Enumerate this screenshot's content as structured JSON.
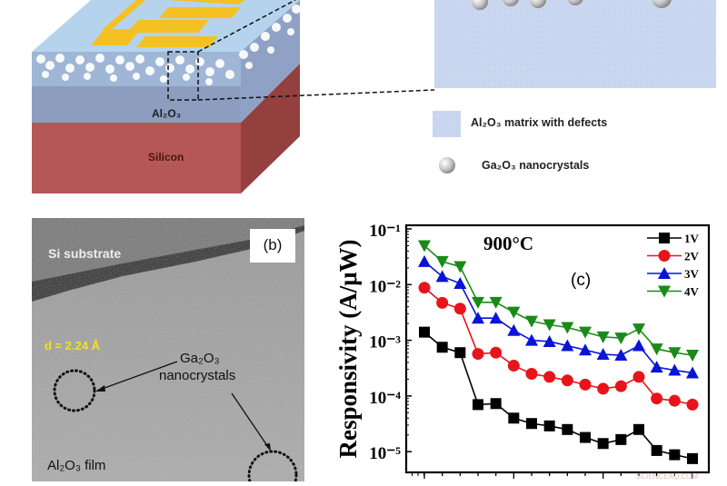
{
  "figure": {
    "panel_a": {
      "layer_labels": {
        "oxide": "Al₂O₃",
        "substrate": "Silicon"
      },
      "legend": [
        {
          "icon": "matrix-swatch",
          "label": "Al₂O₃ matrix with defects"
        },
        {
          "icon": "nanocrystal-sphere",
          "label": "Ga₂O₃ nanocrystals"
        }
      ],
      "colors": {
        "oxide_top": "#a9cbe6",
        "oxide_side": "#8a9cc0",
        "silicon_front": "#b55756",
        "silicon_side": "#94403f",
        "electrode": "#f5c022",
        "zoom_panel": "#c9d8f0"
      }
    },
    "panel_b": {
      "panel_label": "(b)",
      "substrate_label": "Si substrate",
      "d_spacing": "d = 2.24 Å",
      "nanocrystal_label_line1": "Ga₂O₃",
      "nanocrystal_label_line2": "nanocrystals",
      "film_label": "Al₂O₃ film"
    },
    "panel_c": {
      "panel_label": "(c)",
      "watermark": "SCIENCEAQ.COM"
    }
  },
  "chart_data": {
    "type": "line",
    "title": "900°C",
    "panel": "(c)",
    "xlabel": "",
    "ylabel": "Responsivity (A/μW)",
    "yscale": "log",
    "ylim": [
      5e-06,
      0.1
    ],
    "yticks": [
      "10⁻¹",
      "10⁻²",
      "10⁻³",
      "10⁻⁴",
      "10⁻⁵"
    ],
    "x": [
      1,
      2,
      3,
      4,
      5,
      6,
      7,
      8,
      9,
      10,
      11,
      12,
      13,
      14,
      15,
      16
    ],
    "grid": false,
    "legend_position": "upper right",
    "series": [
      {
        "name": "1V",
        "color": "#000000",
        "marker": "square",
        "values": [
          0.0014,
          0.00075,
          0.0006,
          7e-05,
          7.3e-05,
          4e-05,
          3.2e-05,
          2.9e-05,
          2.5e-05,
          1.8e-05,
          1.4e-05,
          1.65e-05,
          2.5e-05,
          1.05e-05,
          8.8e-06,
          7.5e-06
        ]
      },
      {
        "name": "2V",
        "color": "#e8141b",
        "marker": "circle",
        "values": [
          0.0088,
          0.0047,
          0.0037,
          0.00057,
          0.0006,
          0.00035,
          0.00025,
          0.00022,
          0.00019,
          0.00016,
          0.000135,
          0.00015,
          0.00022,
          9e-05,
          8.2e-05,
          7e-05
        ]
      },
      {
        "name": "3V",
        "color": "#0a14d8",
        "marker": "triangle-up",
        "values": [
          0.026,
          0.014,
          0.0105,
          0.0025,
          0.0025,
          0.0015,
          0.001,
          0.00095,
          0.0008,
          0.00067,
          0.00056,
          0.00054,
          0.0008,
          0.00033,
          0.00029,
          0.00026
        ]
      },
      {
        "name": "4V",
        "color": "#1a8a1a",
        "marker": "triangle-down",
        "values": [
          0.05,
          0.026,
          0.021,
          0.0048,
          0.0048,
          0.0032,
          0.0022,
          0.0019,
          0.0017,
          0.0014,
          0.00115,
          0.0011,
          0.0016,
          0.0007,
          0.0006,
          0.00054
        ]
      }
    ]
  }
}
